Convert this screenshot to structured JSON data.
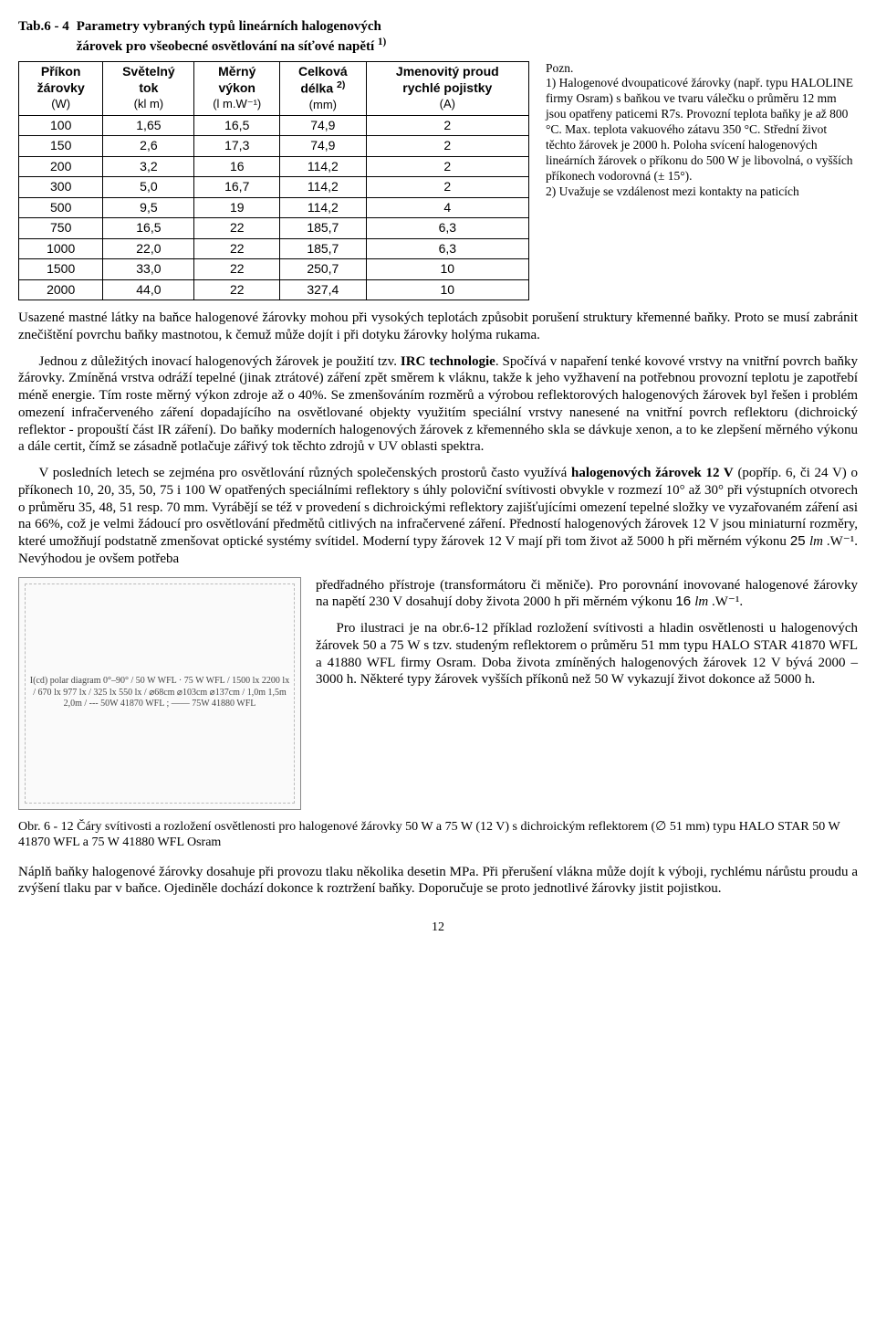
{
  "tableHeader": {
    "label": "Tab.6 - 4",
    "desc_line1": "Parametry vybraných typů lineárních halogenových",
    "desc_line2": "žárovek pro všeobecné osvětlování na síťové napětí",
    "desc_sup": "1)"
  },
  "columns": {
    "c0h1": "Příkon",
    "c0h2": "žárovky",
    "c0u": "(W)",
    "c1h1": "Světelný",
    "c1h2": "tok",
    "c1u": "(kl m)",
    "c2h1": "Měrný",
    "c2h2": "výkon",
    "c2u": "(l m.W⁻¹)",
    "c3h1": "Celková",
    "c3h2": "délka",
    "c3sup": "2)",
    "c3u": "(mm)",
    "c4h1": "Jmenovitý proud",
    "c4h2": "rychlé pojistky",
    "c4u": "(A)"
  },
  "rows": [
    {
      "c0": "100",
      "c1": "1,65",
      "c2": "16,5",
      "c3": "74,9",
      "c4": "2"
    },
    {
      "c0": "150",
      "c1": "2,6",
      "c2": "17,3",
      "c3": "74,9",
      "c4": "2"
    },
    {
      "c0": "200",
      "c1": "3,2",
      "c2": "16",
      "c3": "114,2",
      "c4": "2"
    },
    {
      "c0": "300",
      "c1": "5,0",
      "c2": "16,7",
      "c3": "114,2",
      "c4": "2"
    },
    {
      "c0": "500",
      "c1": "9,5",
      "c2": "19",
      "c3": "114,2",
      "c4": "4"
    },
    {
      "c0": "750",
      "c1": "16,5",
      "c2": "22",
      "c3": "185,7",
      "c4": "6,3"
    },
    {
      "c0": "1000",
      "c1": "22,0",
      "c2": "22",
      "c3": "185,7",
      "c4": "6,3"
    },
    {
      "c0": "1500",
      "c1": "33,0",
      "c2": "22",
      "c3": "250,7",
      "c4": "10"
    },
    {
      "c0": "2000",
      "c1": "44,0",
      "c2": "22",
      "c3": "327,4",
      "c4": "10"
    }
  ],
  "notes": {
    "heading": "Pozn.",
    "n1": "1) Halogenové dvoupaticové žárovky (např. typu HALOLINE firmy Osram) s baňkou ve tvaru válečku o průměru 12 mm jsou opatřeny paticemi R7s. Provozní teplota baňky je až 800 °C. Max. teplota vakuového zátavu 350 °C. Střední život těchto žárovek je 2000 h. Poloha svícení halogenových lineárních žárovek o příkonu do 500 W je libovolná, o vyšších příkonech vodorovná (± 15°).",
    "n2": "2) Uvažuje se vzdálenost mezi kontakty na paticích"
  },
  "p1": "Usazené mastné látky na baňce halogenové žárovky mohou při vysokých teplotách způsobit porušení struktury křemenné baňky. Proto se musí zabránit znečištění povrchu baňky mastnotou, k čemuž může dojít i při dotyku žárovky holýma rukama.",
  "p2a": "Jednou z důležitých inovací halogenových žárovek je použití tzv. ",
  "p2b": "IRC technologie",
  "p2c": ". Spočívá v napaření tenké kovové vrstvy na vnitřní povrch baňky žárovky. Zmíněná vrstva odráží tepelné (jinak ztrátové) záření zpět směrem k vláknu, takže k jeho vyžhavení na potřebnou provozní teplotu je zapotřebí méně energie. Tím roste měrný výkon zdroje až o 40%. Se zmenšováním rozměrů a výrobou reflektorových halogenových žárovek byl řešen i problém omezení infračerveného záření dopadajícího na osvětlované objekty využitím speciální vrstvy nanesené na vnitřní povrch reflektoru (dichroický reflektor - propouští část IR záření). Do baňky moderních halogenových žárovek z křemenného skla se dávkuje xenon, a to ke zlepšení měrného výkonu a dále certit, čímž se zásadně potlačuje zářivý tok těchto zdrojů v UV oblasti spektra.",
  "p3a": "V posledních letech se zejména pro osvětlování různých společenských prostorů často využívá ",
  "p3b": "halogenových žárovek 12 V",
  "p3c": " (popříp. 6, či 24 V) o příkonech 10, 20, 35, 50, 75 i 100 W opatřených speciálními reflektory s úhly poloviční svítivosti obvykle v rozmezí 10° až 30° při výstupních otvorech o průměru 35, 48, 51 resp. 70 mm. Vyrábějí se též v provedení s dichroickými reflektory zajišťujícími omezení tepelné složky ve vyzařovaném záření asi na 66%, což je velmi žádoucí pro osvětlování předmětů citlivých na infračervené záření. Předností halogenových žárovek 12 V jsou miniaturní rozměry, které umožňují podstatně zmenšovat optické systémy svítidel. Moderní typy žárovek 12 V mají při tom život až 5000 h při měrném výkonu ",
  "p3d": "25 ",
  "p3e": "lm",
  "p3f": " .W⁻¹. Nevýhodou je ovšem potřeba",
  "rt1a": "předřadného přístroje (transformátoru či měniče). Pro porovnání inovované halogenové žárovky na napětí 230 V dosahují doby života 2000 h   při měrném výkonu ",
  "rt1b": "16 ",
  "rt1c": "lm",
  "rt1d": " .W⁻¹.",
  "rt2": "Pro ilustraci je na obr.6-12 příklad rozložení svítivosti a hladin osvětlenosti u halogenových žárovek 50 a 75 W s tzv. studeným reflektorem o průměru 51 mm typu HALO STAR 41870 WFL a 41880 WFL firmy Osram. Doba života zmíněných halogenových žárovek 12 V bývá 2000 – 3000 h. Některé typy žárovek vyšších příkonů než 50 W vykazují život dokonce až 5000 h.",
  "figPlaceholder": "I(cd) polar diagram 0°–90° / 50 W WFL · 75 W WFL / 1500 lx 2200 lx / 670 lx 977 lx / 325 lx 550 lx / ⌀68cm ⌀103cm ⌀137cm / 1,0m 1,5m 2,0m / --- 50W 41870 WFL ; —— 75W 41880 WFL",
  "caption": "Obr. 6 - 12   Čáry svítivosti a rozložení osvětlenosti pro halogenové žárovky 50 W a 75 W (12 V) s dichroickým reflektorem (∅ 51 mm) typu HALO STAR 50 W 41870 WFL a 75 W 41880 WFL Osram",
  "p4": "Náplň baňky halogenové žárovky dosahuje při provozu tlaku několika desetin MPa. Při přerušení vlákna může dojít k výboji, rychlému nárůstu proudu a zvýšení tlaku par v baňce. Ojediněle dochází dokonce k roztržení baňky. Doporučuje se proto jednotlivé žárovky jistit pojistkou.",
  "pageNumber": "12"
}
